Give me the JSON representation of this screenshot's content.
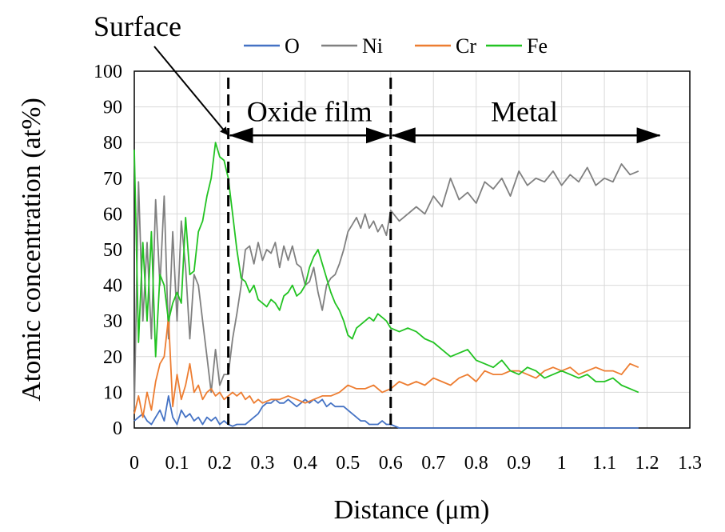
{
  "chart_data": {
    "type": "line",
    "xlabel": "Distance (μm)",
    "ylabel": "Atomic concentration (at%)",
    "xlim": [
      0,
      1.3
    ],
    "ylim": [
      0,
      100
    ],
    "x_ticks": [
      "0",
      "0.1",
      "0.2",
      "0.3",
      "0.4",
      "0.5",
      "0.6",
      "0.7",
      "0.8",
      "0.9",
      "1",
      "1.1",
      "1.2",
      "1.3"
    ],
    "y_ticks": [
      "0",
      "10",
      "20",
      "30",
      "40",
      "50",
      "60",
      "70",
      "80",
      "90",
      "100"
    ],
    "grid": true,
    "legend_position": "top",
    "series": [
      {
        "name": "O",
        "color": "#4472C4",
        "x": [
          0,
          0.01,
          0.02,
          0.03,
          0.04,
          0.05,
          0.06,
          0.07,
          0.08,
          0.09,
          0.1,
          0.11,
          0.12,
          0.13,
          0.14,
          0.15,
          0.16,
          0.17,
          0.18,
          0.19,
          0.2,
          0.21,
          0.22,
          0.23,
          0.24,
          0.25,
          0.26,
          0.27,
          0.28,
          0.29,
          0.3,
          0.31,
          0.32,
          0.33,
          0.34,
          0.35,
          0.36,
          0.37,
          0.38,
          0.39,
          0.4,
          0.41,
          0.42,
          0.43,
          0.44,
          0.45,
          0.46,
          0.47,
          0.48,
          0.49,
          0.5,
          0.51,
          0.52,
          0.53,
          0.54,
          0.55,
          0.56,
          0.57,
          0.58,
          0.59,
          0.6,
          0.62,
          0.7,
          0.8,
          0.9,
          1.0,
          1.1,
          1.18
        ],
        "y": [
          2,
          3,
          4,
          2,
          1,
          3,
          5,
          2,
          9,
          3,
          1,
          5,
          3,
          4,
          2,
          3,
          1,
          3,
          2,
          3,
          1,
          2,
          1,
          0.5,
          1,
          1,
          1,
          2,
          3,
          4,
          6,
          7,
          7,
          8,
          7,
          7,
          8,
          7,
          6,
          7,
          8,
          7,
          8,
          7,
          8,
          6,
          7,
          6,
          6,
          6,
          5,
          4,
          3,
          2,
          2,
          1,
          1,
          1,
          2,
          1,
          1,
          0,
          0,
          0,
          0,
          0,
          0,
          0
        ]
      },
      {
        "name": "Ni",
        "color": "#808080",
        "x": [
          0,
          0.01,
          0.02,
          0.03,
          0.04,
          0.05,
          0.06,
          0.07,
          0.08,
          0.09,
          0.1,
          0.11,
          0.12,
          0.13,
          0.14,
          0.15,
          0.16,
          0.17,
          0.18,
          0.19,
          0.2,
          0.21,
          0.22,
          0.23,
          0.24,
          0.25,
          0.26,
          0.27,
          0.28,
          0.29,
          0.3,
          0.31,
          0.32,
          0.33,
          0.34,
          0.35,
          0.36,
          0.37,
          0.38,
          0.39,
          0.4,
          0.41,
          0.42,
          0.43,
          0.44,
          0.45,
          0.46,
          0.47,
          0.48,
          0.49,
          0.5,
          0.51,
          0.52,
          0.53,
          0.54,
          0.55,
          0.56,
          0.57,
          0.58,
          0.59,
          0.6,
          0.62,
          0.64,
          0.66,
          0.68,
          0.7,
          0.72,
          0.74,
          0.76,
          0.78,
          0.8,
          0.82,
          0.84,
          0.86,
          0.88,
          0.9,
          0.92,
          0.94,
          0.96,
          0.98,
          1.0,
          1.02,
          1.04,
          1.06,
          1.08,
          1.1,
          1.12,
          1.14,
          1.16,
          1.18
        ],
        "y": [
          5,
          69,
          30,
          52,
          25,
          64,
          40,
          65,
          25,
          55,
          30,
          58,
          45,
          25,
          43,
          40,
          30,
          20,
          10,
          22,
          12,
          15,
          15,
          25,
          32,
          40,
          50,
          51,
          46,
          52,
          47,
          50,
          49,
          52,
          45,
          51,
          47,
          51,
          46,
          45,
          40,
          41,
          45,
          38,
          33,
          40,
          42,
          43,
          46,
          50,
          55,
          57,
          59,
          56,
          60,
          56,
          58,
          55,
          57,
          54,
          61,
          58,
          60,
          62,
          60,
          65,
          62,
          70,
          64,
          66,
          63,
          69,
          67,
          70,
          65,
          72,
          68,
          70,
          69,
          72,
          68,
          71,
          69,
          73,
          68,
          70,
          69,
          74,
          71,
          72
        ]
      },
      {
        "name": "Cr",
        "color": "#ED7D31",
        "x": [
          0,
          0.01,
          0.02,
          0.03,
          0.04,
          0.05,
          0.06,
          0.07,
          0.08,
          0.09,
          0.1,
          0.11,
          0.12,
          0.13,
          0.14,
          0.15,
          0.16,
          0.17,
          0.18,
          0.19,
          0.2,
          0.21,
          0.22,
          0.23,
          0.24,
          0.25,
          0.26,
          0.27,
          0.28,
          0.29,
          0.3,
          0.32,
          0.34,
          0.36,
          0.38,
          0.4,
          0.42,
          0.44,
          0.46,
          0.48,
          0.5,
          0.52,
          0.54,
          0.56,
          0.58,
          0.6,
          0.62,
          0.64,
          0.66,
          0.68,
          0.7,
          0.72,
          0.74,
          0.76,
          0.78,
          0.8,
          0.82,
          0.84,
          0.86,
          0.88,
          0.9,
          0.92,
          0.94,
          0.96,
          0.98,
          1.0,
          1.02,
          1.04,
          1.06,
          1.08,
          1.1,
          1.12,
          1.14,
          1.16,
          1.18
        ],
        "y": [
          4,
          9,
          3,
          10,
          5,
          13,
          18,
          20,
          31,
          6,
          15,
          8,
          12,
          18,
          10,
          12,
          8,
          10,
          11,
          9,
          10,
          8,
          9,
          10,
          9,
          10,
          8,
          9,
          7,
          8,
          7,
          8,
          8,
          9,
          8,
          7,
          8,
          9,
          9,
          10,
          12,
          11,
          11,
          12,
          10,
          11,
          13,
          12,
          13,
          12,
          14,
          13,
          12,
          14,
          15,
          13,
          16,
          15,
          15,
          16,
          16,
          15,
          14,
          16,
          17,
          16,
          17,
          15,
          16,
          17,
          16,
          16,
          15,
          18,
          17
        ]
      },
      {
        "name": "Fe",
        "color": "#22C322",
        "x": [
          0,
          0.01,
          0.02,
          0.03,
          0.04,
          0.05,
          0.06,
          0.07,
          0.08,
          0.09,
          0.1,
          0.11,
          0.12,
          0.13,
          0.14,
          0.15,
          0.16,
          0.17,
          0.18,
          0.19,
          0.2,
          0.21,
          0.22,
          0.23,
          0.24,
          0.25,
          0.26,
          0.27,
          0.28,
          0.29,
          0.3,
          0.31,
          0.32,
          0.33,
          0.34,
          0.35,
          0.36,
          0.37,
          0.38,
          0.39,
          0.4,
          0.41,
          0.42,
          0.43,
          0.44,
          0.45,
          0.46,
          0.47,
          0.48,
          0.49,
          0.5,
          0.51,
          0.52,
          0.53,
          0.54,
          0.55,
          0.56,
          0.57,
          0.58,
          0.59,
          0.6,
          0.62,
          0.64,
          0.66,
          0.68,
          0.7,
          0.72,
          0.74,
          0.76,
          0.78,
          0.8,
          0.82,
          0.84,
          0.86,
          0.88,
          0.9,
          0.92,
          0.94,
          0.96,
          0.98,
          1.0,
          1.02,
          1.04,
          1.06,
          1.08,
          1.1,
          1.12,
          1.14,
          1.16,
          1.18
        ],
        "y": [
          78,
          24,
          52,
          30,
          55,
          20,
          43,
          40,
          30,
          35,
          38,
          35,
          59,
          43,
          44,
          55,
          58,
          65,
          70,
          80,
          76,
          75,
          70,
          60,
          50,
          42,
          41,
          38,
          40,
          36,
          35,
          34,
          36,
          35,
          33,
          37,
          38,
          40,
          37,
          38,
          40,
          45,
          48,
          50,
          46,
          42,
          38,
          35,
          33,
          30,
          26,
          25,
          28,
          29,
          30,
          31,
          30,
          32,
          31,
          30,
          28,
          27,
          28,
          27,
          25,
          24,
          22,
          20,
          21,
          22,
          19,
          18,
          17,
          19,
          16,
          15,
          17,
          16,
          14,
          15,
          16,
          15,
          14,
          15,
          13,
          13,
          14,
          12,
          11,
          10
        ]
      }
    ],
    "annotations": {
      "surface": "Surface",
      "oxide_film": "Oxide film",
      "metal": "Metal",
      "boundary_x": [
        0.22,
        0.6
      ],
      "metal_arrow_end_x": 1.23
    }
  }
}
